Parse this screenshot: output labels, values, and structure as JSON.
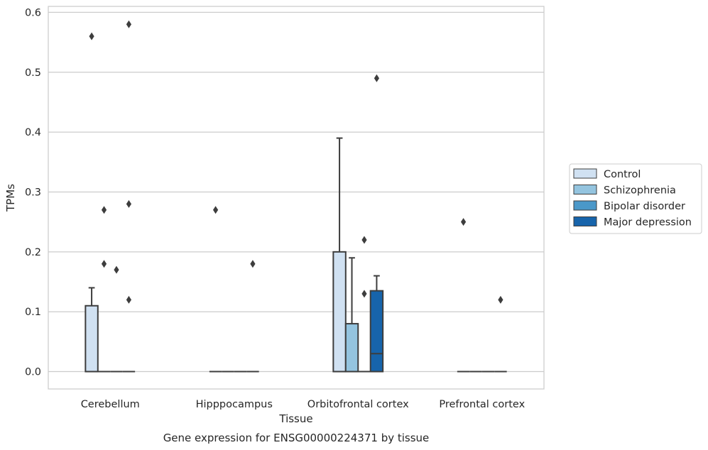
{
  "chart_data": {
    "type": "box",
    "title": "",
    "caption": "Gene expression for ENSG00000224371 by tissue",
    "xlabel": "Tissue",
    "ylabel": "TPMs",
    "ylim": [
      -0.029,
      0.61
    ],
    "yticks": [
      0.0,
      0.1,
      0.2,
      0.3,
      0.4,
      0.5,
      0.6
    ],
    "ytick_labels": [
      "0.0",
      "0.1",
      "0.2",
      "0.3",
      "0.4",
      "0.5",
      "0.6"
    ],
    "grid": "horizontal",
    "legend_position": "right",
    "categories": [
      "Cerebellum",
      "Hipppocampus",
      "Orbitofrontal cortex",
      "Prefrontal cortex"
    ],
    "series": [
      {
        "name": "Control",
        "color": "#d0e1f2",
        "boxes": [
          {
            "q1": 0.0,
            "median": 0.0,
            "q3": 0.11,
            "whisker_low": 0.0,
            "whisker_high": 0.14,
            "outliers": [
              0.56
            ]
          },
          {
            "q1": 0.0,
            "median": 0.0,
            "q3": 0.0,
            "whisker_low": 0.0,
            "whisker_high": 0.0,
            "outliers": [
              0.27
            ]
          },
          {
            "q1": 0.0,
            "median": 0.0,
            "q3": 0.2,
            "whisker_low": 0.0,
            "whisker_high": 0.39,
            "outliers": []
          },
          {
            "q1": 0.0,
            "median": 0.0,
            "q3": 0.0,
            "whisker_low": 0.0,
            "whisker_high": 0.0,
            "outliers": [
              0.25
            ]
          }
        ]
      },
      {
        "name": "Schizophrenia",
        "color": "#94c4df",
        "boxes": [
          {
            "q1": 0.0,
            "median": 0.0,
            "q3": 0.0,
            "whisker_low": 0.0,
            "whisker_high": 0.0,
            "outliers": [
              0.27,
              0.18
            ]
          },
          {
            "q1": 0.0,
            "median": 0.0,
            "q3": 0.0,
            "whisker_low": 0.0,
            "whisker_high": 0.0,
            "outliers": []
          },
          {
            "q1": 0.0,
            "median": 0.0,
            "q3": 0.08,
            "whisker_low": 0.0,
            "whisker_high": 0.19,
            "outliers": []
          },
          {
            "q1": 0.0,
            "median": 0.0,
            "q3": 0.0,
            "whisker_low": 0.0,
            "whisker_high": 0.0,
            "outliers": []
          }
        ]
      },
      {
        "name": "Bipolar disorder",
        "color": "#4a98c9",
        "boxes": [
          {
            "q1": 0.0,
            "median": 0.0,
            "q3": 0.0,
            "whisker_low": 0.0,
            "whisker_high": 0.0,
            "outliers": [
              0.17
            ]
          },
          {
            "q1": 0.0,
            "median": 0.0,
            "q3": 0.0,
            "whisker_low": 0.0,
            "whisker_high": 0.0,
            "outliers": []
          },
          {
            "q1": 0.0,
            "median": 0.0,
            "q3": 0.0,
            "whisker_low": 0.0,
            "whisker_high": 0.0,
            "outliers": [
              0.22,
              0.13
            ]
          },
          {
            "q1": 0.0,
            "median": 0.0,
            "q3": 0.0,
            "whisker_low": 0.0,
            "whisker_high": 0.0,
            "outliers": []
          }
        ]
      },
      {
        "name": "Major depression",
        "color": "#1764ab",
        "boxes": [
          {
            "q1": 0.0,
            "median": 0.0,
            "q3": 0.0,
            "whisker_low": 0.0,
            "whisker_high": 0.0,
            "outliers": [
              0.58,
              0.28,
              0.12
            ]
          },
          {
            "q1": 0.0,
            "median": 0.0,
            "q3": 0.0,
            "whisker_low": 0.0,
            "whisker_high": 0.0,
            "outliers": [
              0.18
            ]
          },
          {
            "q1": 0.0,
            "median": 0.03,
            "q3": 0.135,
            "whisker_low": 0.0,
            "whisker_high": 0.16,
            "outliers": [
              0.49
            ]
          },
          {
            "q1": 0.0,
            "median": 0.0,
            "q3": 0.0,
            "whisker_low": 0.0,
            "whisker_high": 0.0,
            "outliers": [
              0.12
            ]
          }
        ]
      }
    ]
  }
}
